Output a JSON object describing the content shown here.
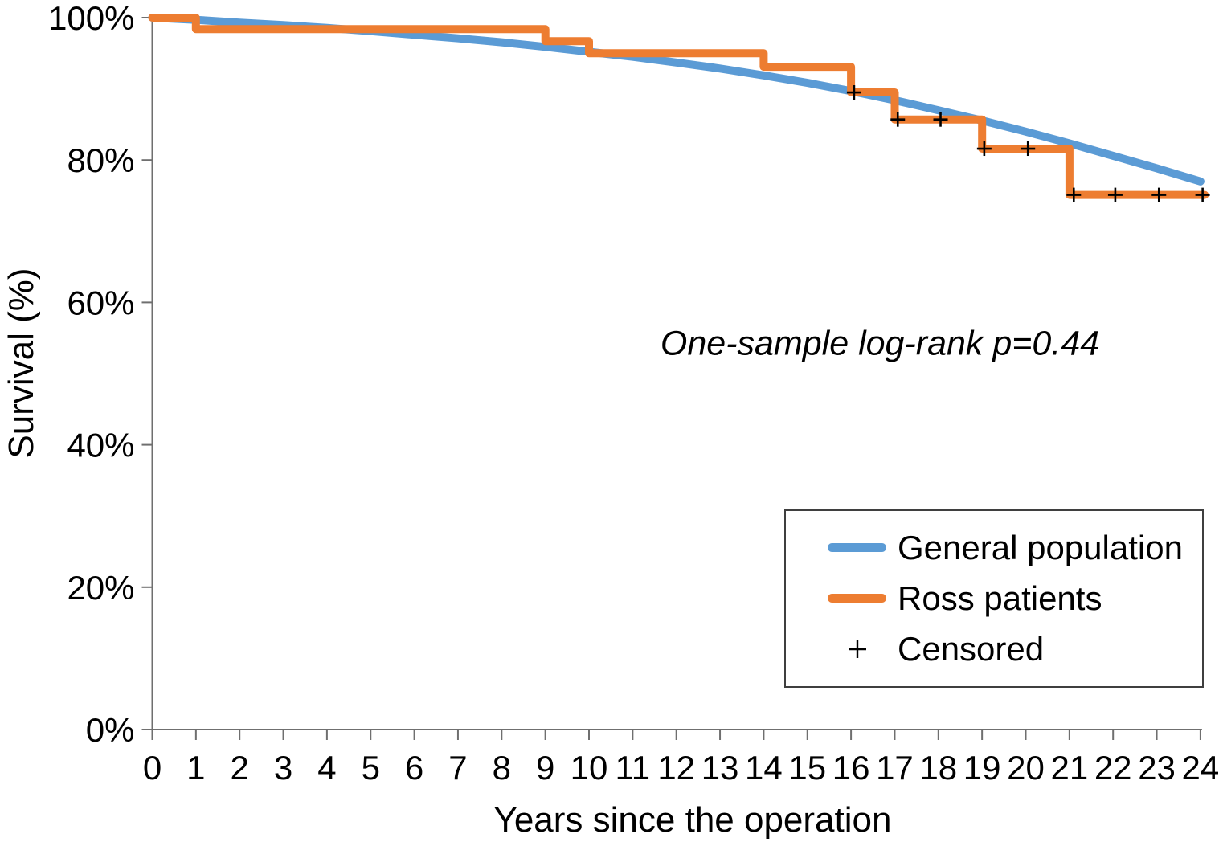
{
  "chart_data": {
    "type": "line",
    "title": "",
    "xlabel": "Years since the operation",
    "ylabel": "Survival (%)",
    "xlim": [
      0,
      24
    ],
    "ylim": [
      0,
      100
    ],
    "grid": false,
    "background": "#ffffff",
    "axis_color": "#6f6f6f",
    "tick_label_color": "#000000",
    "x_ticks": {
      "values": [
        0,
        1,
        2,
        3,
        4,
        5,
        6,
        7,
        8,
        9,
        10,
        11,
        12,
        13,
        14,
        15,
        16,
        17,
        18,
        19,
        20,
        21,
        22,
        23,
        24
      ],
      "labels": [
        "0",
        "1",
        "2",
        "3",
        "4",
        "5",
        "6",
        "7",
        "8",
        "9",
        "10",
        "11",
        "12",
        "13",
        "14",
        "15",
        "16",
        "17",
        "18",
        "19",
        "20",
        "21",
        "22",
        "23",
        "24"
      ]
    },
    "y_ticks": {
      "values": [
        0,
        20,
        40,
        60,
        80,
        100
      ],
      "labels": [
        "0%",
        "20%",
        "40%",
        "60%",
        "80%",
        "100%"
      ]
    },
    "annotation": {
      "text": "One-sample log-rank p=0.44",
      "x": 16.7,
      "y": 54.2
    },
    "series": [
      {
        "name": "General population",
        "type": "smooth_line",
        "color": "#5B9BD5",
        "stroke_width": 10,
        "x": [
          0,
          1,
          2,
          3,
          4,
          5,
          6,
          7,
          8,
          9,
          10,
          11,
          12,
          13,
          14,
          15,
          16,
          17,
          18,
          19,
          20,
          21,
          22,
          23,
          24
        ],
        "y": [
          100,
          99.7,
          99.3,
          98.95,
          98.55,
          98.1,
          97.6,
          97.1,
          96.55,
          95.9,
          95.2,
          94.5,
          93.7,
          92.85,
          91.9,
          90.85,
          89.7,
          88.4,
          87.0,
          85.55,
          84.0,
          82.35,
          80.6,
          78.85,
          77.0
        ]
      },
      {
        "name": "Ross patients",
        "type": "step_line",
        "color": "#ED7D31",
        "stroke_width": 10,
        "steps": [
          {
            "t": 0,
            "survival": 100
          },
          {
            "t": 1,
            "survival": 98.4
          },
          {
            "t": 9,
            "survival": 96.7
          },
          {
            "t": 10,
            "survival": 95.0
          },
          {
            "t": 14,
            "survival": 93.1
          },
          {
            "t": 16,
            "survival": 89.5
          },
          {
            "t": 17,
            "survival": 85.7
          },
          {
            "t": 19,
            "survival": 81.6
          },
          {
            "t": 21,
            "survival": 75.1
          }
        ],
        "end_t": 24.1
      },
      {
        "name": "Censored",
        "type": "markers",
        "marker": "plus",
        "color": "#000000",
        "points": [
          {
            "t": 16.07,
            "survival": 89.5
          },
          {
            "t": 17.07,
            "survival": 85.7
          },
          {
            "t": 18.05,
            "survival": 85.7
          },
          {
            "t": 19.05,
            "survival": 81.6
          },
          {
            "t": 20.05,
            "survival": 81.6
          },
          {
            "t": 21.1,
            "survival": 75.1
          },
          {
            "t": 22.05,
            "survival": 75.1
          },
          {
            "t": 23.05,
            "survival": 75.1
          },
          {
            "t": 24.05,
            "survival": 75.1
          }
        ]
      }
    ],
    "legend": {
      "position": "lower-right",
      "entries": [
        {
          "label": "General population",
          "swatch": "line",
          "color": "#5B9BD5"
        },
        {
          "label": "Ross patients",
          "swatch": "line",
          "color": "#ED7D31"
        },
        {
          "label": "Censored",
          "swatch": "plus",
          "color": "#000000"
        }
      ]
    }
  }
}
